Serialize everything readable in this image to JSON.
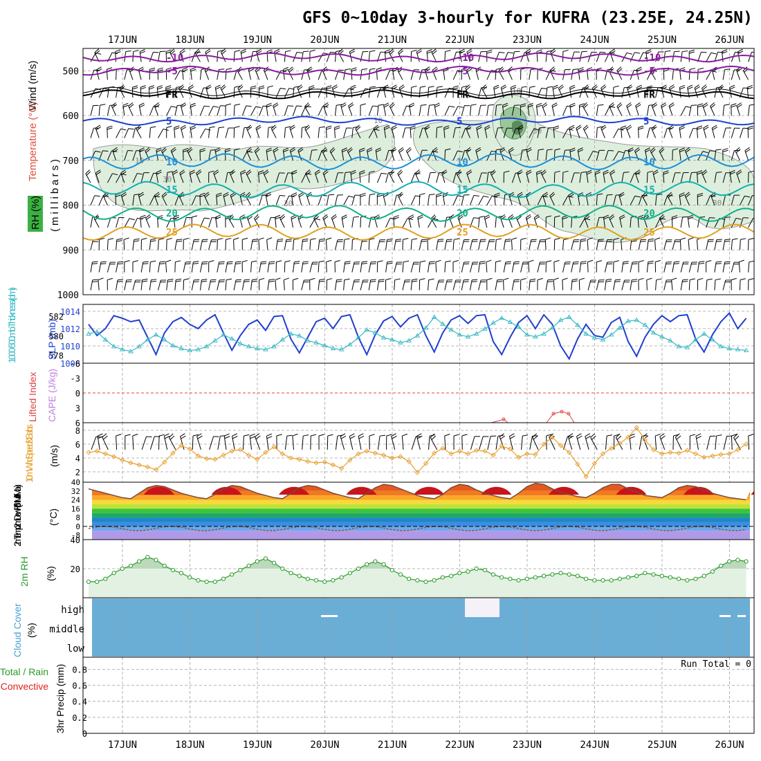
{
  "title": "GFS 0~10day 3-hourly for KUFRA (23.25E, 24.25N)",
  "dates": [
    "17JUN",
    "18JUN",
    "19JUN",
    "20JUN",
    "21JUN",
    "22JUN",
    "23JUN",
    "24JUN",
    "25JUN",
    "26JUN"
  ],
  "colors": {
    "frame": "#000000",
    "grid": "#a0a0a0",
    "rh_fill": "#d9ecd9",
    "rh_contour": "#9a9a9a",
    "slp": "#1f3fd0",
    "thickness": "#36b8c4",
    "lifted_index": "#e04040",
    "cape": "#c080e0",
    "wind_speed": "#e8a030",
    "rh2m_line": "#2a9a2a",
    "rh2m_fill": "#e3f1e3",
    "cloud": "#6aaed6",
    "precip_total": "#2a9a2a",
    "precip_conv": "#e02020"
  },
  "upper": {
    "ylabel_wind": "Wind (m/s)",
    "ylabel_temp": "Temperature (°C)",
    "ylabel_rh": "RH (%)",
    "ylabel_pres": "(millibars)",
    "pressure_ticks": [
      "500",
      "600",
      "700",
      "800",
      "900",
      "1000"
    ],
    "isotherms": [
      {
        "label": "-10",
        "level_mb": 470,
        "color": "#8a1aa0"
      },
      {
        "label": "-5",
        "level_mb": 500,
        "color": "#8a1aa0"
      },
      {
        "label": "FR",
        "level_mb": 553,
        "color": "#000000"
      },
      {
        "label": "5",
        "level_mb": 612,
        "color": "#1a40d0"
      },
      {
        "label": "10",
        "level_mb": 703,
        "color": "#1a90d8"
      },
      {
        "label": "15",
        "level_mb": 765,
        "color": "#12b0b0"
      },
      {
        "label": "20",
        "level_mb": 818,
        "color": "#10b088"
      },
      {
        "label": "25",
        "level_mb": 860,
        "color": "#e0a020"
      }
    ],
    "rh_contour_labels": [
      "10",
      "30"
    ]
  },
  "slp_panel": {
    "ylabel_left": "1000-500mb Thickness (dm)",
    "ylabel_right": "SLP (mb)",
    "thickness_ticks": [
      "578",
      "580",
      "582"
    ],
    "slp_ticks": [
      "1008",
      "1010",
      "1012",
      "1014"
    ]
  },
  "li_panel": {
    "ylabel_li": "Lifted Index",
    "ylabel_cape": "CAPE (J/kg)",
    "ticks": [
      "-6",
      "-3",
      "0",
      "3",
      "6"
    ]
  },
  "wind_panel": {
    "ylabel": "10m Wind Speed & Barbs",
    "unit": "(m/s)",
    "ticks": [
      "2",
      "4",
      "6",
      "8"
    ]
  },
  "temp_panel": {
    "ylabel": "2m Temp 2m DewPt (6hr Min/Max)",
    "unit": "(°C)",
    "ticks": [
      "40",
      "32",
      "24",
      "16",
      "8",
      "0",
      "-8"
    ]
  },
  "rh_panel": {
    "ylabel": "2m RH",
    "unit": "(%)",
    "ticks": [
      "20",
      "40"
    ]
  },
  "cloud_panel": {
    "ylabel": "Cloud Cover",
    "unit": "(%)",
    "levels": [
      "high",
      "middle",
      "low"
    ]
  },
  "precip_panel": {
    "ylabel_total": "Total / Rain",
    "ylabel_conv": "Convective",
    "ylabel_unit": "3hr Precip (mm)",
    "run_total": "Run Total = 0",
    "ticks": [
      "0",
      "0.2",
      "0.4",
      "0.6",
      "0.8"
    ]
  },
  "chart_data": {
    "type": "line",
    "title": "GFS 0~10day 3-hourly for KUFRA (23.25E, 24.25N)",
    "x": [
      "16JUN 15Z",
      "16JUN 18Z",
      "16JUN 21Z",
      "17JUN 00Z",
      "17JUN 03Z",
      "17JUN 06Z",
      "17JUN 09Z",
      "17JUN 12Z",
      "17JUN 15Z",
      "17JUN 18Z",
      "17JUN 21Z",
      "18JUN 00Z",
      "18JUN 03Z",
      "18JUN 06Z",
      "18JUN 09Z",
      "18JUN 12Z",
      "18JUN 15Z",
      "18JUN 18Z",
      "18JUN 21Z",
      "19JUN 00Z",
      "19JUN 03Z",
      "19JUN 06Z",
      "19JUN 09Z",
      "19JUN 12Z",
      "19JUN 15Z",
      "19JUN 18Z",
      "19JUN 21Z",
      "20JUN 00Z",
      "20JUN 03Z",
      "20JUN 06Z",
      "20JUN 09Z",
      "20JUN 12Z",
      "20JUN 15Z",
      "20JUN 18Z",
      "20JUN 21Z",
      "21JUN 00Z",
      "21JUN 03Z",
      "21JUN 06Z",
      "21JUN 09Z",
      "21JUN 12Z",
      "21JUN 15Z",
      "21JUN 18Z",
      "21JUN 21Z",
      "22JUN 00Z",
      "22JUN 03Z",
      "22JUN 06Z",
      "22JUN 09Z",
      "22JUN 12Z",
      "22JUN 15Z",
      "22JUN 18Z",
      "22JUN 21Z",
      "23JUN 00Z",
      "23JUN 03Z",
      "23JUN 06Z",
      "23JUN 09Z",
      "23JUN 12Z",
      "23JUN 15Z",
      "23JUN 18Z",
      "23JUN 21Z",
      "24JUN 00Z",
      "24JUN 03Z",
      "24JUN 06Z",
      "24JUN 09Z",
      "24JUN 12Z",
      "24JUN 15Z",
      "24JUN 18Z",
      "24JUN 21Z",
      "25JUN 00Z",
      "25JUN 03Z",
      "25JUN 06Z",
      "25JUN 09Z",
      "25JUN 12Z",
      "25JUN 15Z",
      "25JUN 18Z",
      "25JUN 21Z",
      "26JUN 00Z",
      "26JUN 03Z",
      "26JUN 06Z",
      "26JUN 09Z"
    ],
    "series": [
      {
        "name": "SLP (mb)",
        "panel": "slp",
        "values": [
          1012.5,
          1011.2,
          1012.0,
          1013.5,
          1013.2,
          1012.8,
          1013.0,
          1011.0,
          1009.0,
          1011.5,
          1012.8,
          1013.3,
          1012.5,
          1012.0,
          1013.0,
          1013.6,
          1011.5,
          1009.5,
          1011.2,
          1012.5,
          1013.0,
          1011.8,
          1013.4,
          1013.5,
          1010.8,
          1009.2,
          1011.0,
          1012.8,
          1013.2,
          1012.0,
          1013.4,
          1013.6,
          1011.0,
          1009.0,
          1011.3,
          1012.9,
          1013.4,
          1012.2,
          1013.2,
          1013.6,
          1011.2,
          1009.3,
          1011.5,
          1013.0,
          1013.5,
          1012.6,
          1013.5,
          1013.6,
          1010.5,
          1009.0,
          1011.0,
          1012.7,
          1013.5,
          1012.0,
          1013.6,
          1012.5,
          1010.0,
          1008.5,
          1010.8,
          1012.5,
          1011.2,
          1011.0,
          1012.7,
          1013.3,
          1010.5,
          1008.8,
          1011.0,
          1012.5,
          1013.5,
          1012.8,
          1013.5,
          1013.6,
          1010.8,
          1009.3,
          1011.3,
          1012.8,
          1013.8,
          1012.0,
          1013.2
        ]
      },
      {
        "name": "1000-500mb Thickness (dm)",
        "panel": "slp",
        "values": [
          580.2,
          580.4,
          579.6,
          578.9,
          578.6,
          578.4,
          578.9,
          579.6,
          580.1,
          579.6,
          579.0,
          578.7,
          578.5,
          578.6,
          578.9,
          579.5,
          580.1,
          579.7,
          579.2,
          578.9,
          578.7,
          578.6,
          578.9,
          579.6,
          580.2,
          580.0,
          579.5,
          579.3,
          579.0,
          578.7,
          578.6,
          579.1,
          579.8,
          580.6,
          580.3,
          579.8,
          579.6,
          579.3,
          579.5,
          580.0,
          580.8,
          581.9,
          581.2,
          580.6,
          580.1,
          579.9,
          580.2,
          580.7,
          581.3,
          581.8,
          581.4,
          580.9,
          580.1,
          579.9,
          580.2,
          580.8,
          581.6,
          581.9,
          581.1,
          580.2,
          579.8,
          579.6,
          580.1,
          580.8,
          581.5,
          581.6,
          581.1,
          580.3,
          579.9,
          579.5,
          578.9,
          578.8,
          579.6,
          580.2,
          579.6,
          578.9,
          578.7,
          578.6,
          578.5
        ]
      },
      {
        "name": "10m Wind Speed (m/s)",
        "panel": "wind",
        "values": [
          4.8,
          5.0,
          4.6,
          4.2,
          3.7,
          3.3,
          3.0,
          2.7,
          2.3,
          3.4,
          4.7,
          5.8,
          5.3,
          4.3,
          3.9,
          3.8,
          4.4,
          5.0,
          5.2,
          4.4,
          3.8,
          4.8,
          5.6,
          4.6,
          4.0,
          3.8,
          3.5,
          3.3,
          3.4,
          3.0,
          2.5,
          3.7,
          4.6,
          5.0,
          4.7,
          4.4,
          4.0,
          4.2,
          3.5,
          1.9,
          3.2,
          4.7,
          5.4,
          4.6,
          5.0,
          4.6,
          5.1,
          5.0,
          4.4,
          5.7,
          5.3,
          4.1,
          4.6,
          4.5,
          6.0,
          7.0,
          5.8,
          4.8,
          3.1,
          1.3,
          3.2,
          4.6,
          5.4,
          6.1,
          7.0,
          8.4,
          6.6,
          5.2,
          4.6,
          4.8,
          4.7,
          5.1,
          4.6,
          4.1,
          4.3,
          4.5,
          4.6,
          5.2,
          6.0
        ]
      },
      {
        "name": "2m RH (%)",
        "panel": "rh",
        "values": [
          11,
          11,
          13,
          17,
          20,
          22,
          25,
          28,
          26,
          22,
          19,
          17,
          14,
          12,
          11,
          11,
          13,
          16,
          19,
          22,
          25,
          27,
          24,
          20,
          17,
          15,
          13,
          12,
          11,
          12,
          14,
          17,
          20,
          23,
          25,
          23,
          19,
          16,
          13,
          12,
          11,
          12,
          14,
          15,
          17,
          18,
          20,
          19,
          16,
          14,
          13,
          12,
          13,
          14,
          15,
          16,
          17,
          16,
          15,
          13,
          12,
          12,
          12,
          13,
          14,
          15,
          17,
          16,
          15,
          14,
          13,
          12,
          13,
          15,
          18,
          22,
          25,
          26,
          25
        ]
      },
      {
        "name": "2m Temp (°C)",
        "panel": "temp",
        "values": [
          34,
          32,
          30,
          28,
          26,
          25,
          30,
          35,
          37,
          36,
          33,
          30,
          28,
          26,
          25,
          29,
          34,
          37,
          36,
          33,
          30,
          28,
          26,
          25,
          30,
          35,
          37,
          36,
          33,
          30,
          28,
          26,
          25,
          30,
          35,
          38,
          37,
          34,
          31,
          28,
          26,
          25,
          29,
          35,
          38,
          37,
          33,
          30,
          28,
          26,
          25,
          30,
          36,
          39,
          38,
          34,
          31,
          29,
          27,
          26,
          30,
          35,
          38,
          38,
          34,
          31,
          28,
          27,
          26,
          30,
          35,
          37,
          36,
          33,
          30,
          28,
          26,
          25,
          24
        ]
      }
    ],
    "xlabel": "",
    "ylabel": ""
  }
}
